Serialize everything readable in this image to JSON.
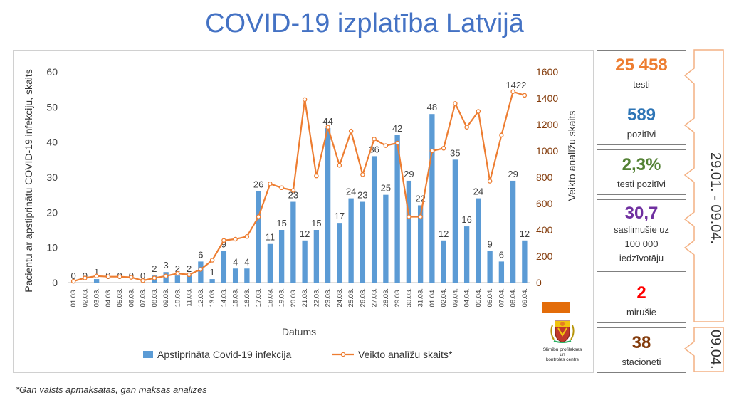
{
  "title": "COVID-19 izplatība Latvijā",
  "footnote": "*Gan valsts apmaksātās, gan maksas analīzes",
  "stats": [
    {
      "value": "25 458",
      "label": "testi",
      "color": "#ed7d31"
    },
    {
      "value": "589",
      "label": "pozitīvi",
      "color": "#2e75b6"
    },
    {
      "value": "2,3%",
      "label": "testi pozitīvi",
      "color": "#548235"
    },
    {
      "value": "30,7",
      "label_lines": [
        "saslimušie uz",
        "100 000",
        "iedzīvotāju"
      ],
      "color": "#7030a0"
    },
    {
      "value": "2",
      "label": "mirušie",
      "color": "#ff0000"
    },
    {
      "value": "38",
      "label": "stacionēti",
      "color": "#843c0c"
    }
  ],
  "period_label": "29.01. - 09.04.",
  "date_label": "09.04.",
  "logo": {
    "icon": "latvia-coat-of-arms-icon",
    "name_lines": [
      "Slimību profilakses un",
      "kontroles centrs"
    ],
    "swatch_color": "#e36c09"
  },
  "chart_data": {
    "type": "bar+line",
    "categories": [
      "01.03.",
      "02.03.",
      "03.03.",
      "04.03.",
      "05.03.",
      "06.03.",
      "07.03.",
      "08.03.",
      "09.03.",
      "10.03.",
      "11.03.",
      "12.03.",
      "13.03.",
      "14.03.",
      "15.03.",
      "16.03.",
      "17.03.",
      "18.03.",
      "19.03.",
      "20.03.",
      "21.03.",
      "22.03.",
      "23.03.",
      "24.03.",
      "25.03.",
      "26.03.",
      "27.03.",
      "28.03.",
      "29.03.",
      "30.03.",
      "31.03.",
      "01.04.",
      "02.04.",
      "03.04.",
      "04.04.",
      "05.04.",
      "06.04.",
      "07.04.",
      "08.04.",
      "09.04."
    ],
    "series": [
      {
        "name": "Apstiprināta Covid-19 infekcija",
        "type": "bar",
        "axis": "left",
        "color": "#5b9bd5",
        "values": [
          0,
          0,
          1,
          0,
          0,
          0,
          0,
          2,
          3,
          2,
          2,
          6,
          1,
          9,
          4,
          4,
          26,
          11,
          15,
          23,
          12,
          15,
          44,
          17,
          24,
          23,
          36,
          25,
          42,
          29,
          22,
          48,
          12,
          35,
          16,
          24,
          9,
          6,
          29,
          12
        ]
      },
      {
        "name": "Veikto analīžu skaits*",
        "type": "line",
        "axis": "right",
        "color": "#ed7d31",
        "values": [
          10,
          35,
          50,
          45,
          45,
          40,
          15,
          35,
          50,
          70,
          60,
          100,
          170,
          320,
          330,
          350,
          500,
          750,
          720,
          700,
          1390,
          810,
          1180,
          890,
          1150,
          820,
          1090,
          1040,
          1060,
          500,
          500,
          1000,
          1020,
          1360,
          1180,
          1300,
          770,
          1120,
          1450,
          1422
        ],
        "labeled_point": {
          "index": 39,
          "label": "1422"
        }
      }
    ],
    "xlabel": "Datums",
    "ylabel_left": "Pacientu ar apstiprinātu COVID-19 infekciju, skaits",
    "ylabel_right": "Veikto analīžu skaits",
    "ylim_left": [
      0,
      60
    ],
    "yticks_left": [
      0,
      10,
      20,
      30,
      40,
      50,
      60
    ],
    "ylim_right": [
      0,
      1600
    ],
    "yticks_right": [
      0,
      200,
      400,
      600,
      800,
      1000,
      1200,
      1400,
      1600
    ],
    "legend_position": "bottom",
    "grid": false
  }
}
